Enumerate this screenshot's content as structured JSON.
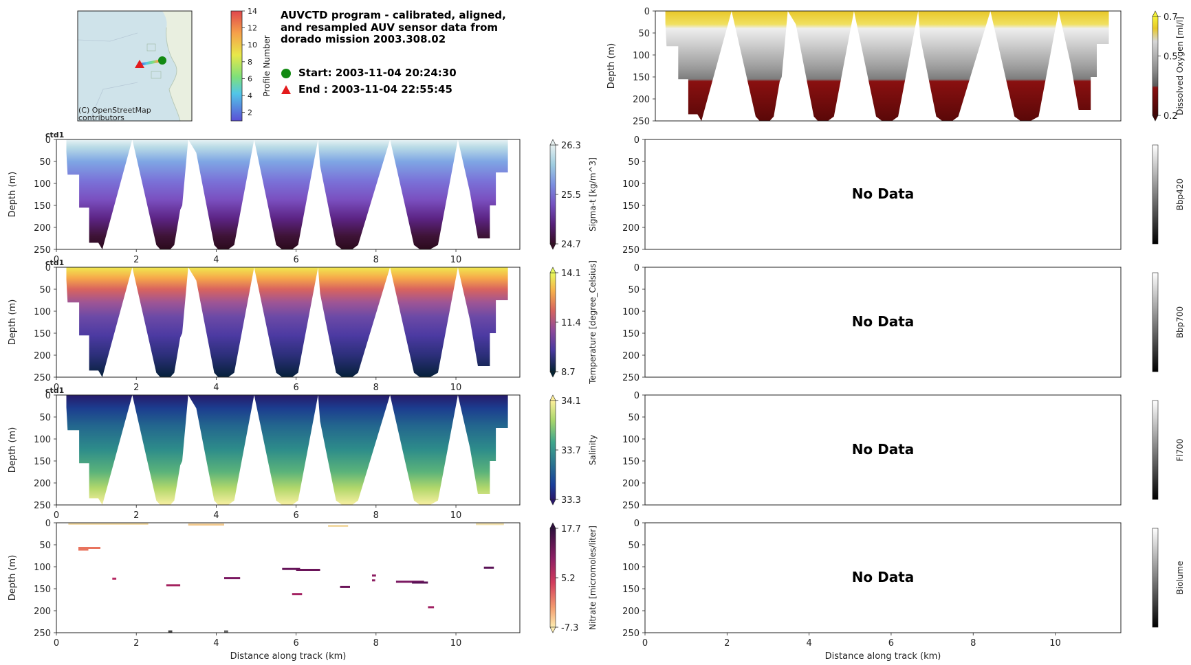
{
  "header": {
    "title_lines": [
      "AUVCTD program - calibrated, aligned,",
      "and resampled AUV sensor data from",
      "dorado mission 2003.308.02"
    ],
    "start_label": "Start: 2003-11-04 20:24:30",
    "end_label": "End  : 2003-11-04 22:55:45",
    "map_credit": [
      "(C) OpenStreetMap",
      "contributors"
    ],
    "profile_colorbar": {
      "label": "Profile Number",
      "ticks": [
        "14",
        "12",
        "10",
        "8",
        "6",
        "4",
        "2"
      ],
      "range": [
        1,
        14
      ]
    }
  },
  "no_data_label": "No Data",
  "chart_data": [
    {
      "id": "sigma_t",
      "type": "heatmap",
      "instrument": "ctd1",
      "title": "ctd1",
      "xlabel": "",
      "ylabel": "Depth (m)",
      "x_ticks": [
        "0",
        "2",
        "4",
        "6",
        "8",
        "10"
      ],
      "xlim": [
        0,
        11.6
      ],
      "y_ticks": [
        "0",
        "50",
        "100",
        "150",
        "200",
        "250"
      ],
      "ylim": [
        250,
        0
      ],
      "colorbar": {
        "label": "Sigma-t [kg/m^3]",
        "ticks": [
          "26.3",
          "25.5",
          "24.7"
        ],
        "range": [
          24.7,
          26.3
        ],
        "cmap": "dense"
      }
    },
    {
      "id": "temperature",
      "type": "heatmap",
      "instrument": "ctd1",
      "title": "ctd1",
      "xlabel": "",
      "ylabel": "Depth (m)",
      "x_ticks": [
        "0",
        "2",
        "4",
        "6",
        "8",
        "10"
      ],
      "xlim": [
        0,
        11.6
      ],
      "y_ticks": [
        "0",
        "50",
        "100",
        "150",
        "200",
        "250"
      ],
      "ylim": [
        250,
        0
      ],
      "colorbar": {
        "label": "Temperature [degree_Celsius]",
        "ticks": [
          "14.1",
          "11.4",
          "8.7"
        ],
        "range": [
          8.7,
          14.1
        ],
        "cmap": "thermal"
      }
    },
    {
      "id": "salinity",
      "type": "heatmap",
      "instrument": "ctd1",
      "title": "ctd1",
      "xlabel": "",
      "ylabel": "Depth (m)",
      "x_ticks": [
        "0",
        "2",
        "4",
        "6",
        "8",
        "10"
      ],
      "xlim": [
        0,
        11.6
      ],
      "y_ticks": [
        "0",
        "50",
        "100",
        "150",
        "200",
        "250"
      ],
      "ylim": [
        250,
        0
      ],
      "colorbar": {
        "label": "Salinity",
        "ticks": [
          "34.1",
          "33.7",
          "33.3"
        ],
        "range": [
          33.3,
          34.1
        ],
        "cmap": "haline"
      }
    },
    {
      "id": "nitrate",
      "type": "heatmap",
      "instrument": "",
      "title": "",
      "xlabel": "Distance along track (km)",
      "ylabel": "Depth (m)",
      "x_ticks": [
        "0",
        "2",
        "4",
        "6",
        "8",
        "10"
      ],
      "xlim": [
        0,
        11.6
      ],
      "y_ticks": [
        "0",
        "50",
        "100",
        "150",
        "200",
        "250"
      ],
      "ylim": [
        250,
        0
      ],
      "colorbar": {
        "label": "Nitrate [micromoles/liter]",
        "ticks": [
          "17.7",
          "5.2",
          "-7.3"
        ],
        "range": [
          -7.3,
          17.7
        ],
        "cmap": "matter"
      }
    },
    {
      "id": "dissolved_oxygen",
      "type": "heatmap",
      "instrument": "",
      "title": "",
      "xlabel": "",
      "ylabel": "Depth (m)",
      "x_ticks": [],
      "xlim": [
        0,
        11.6
      ],
      "y_ticks": [
        "0",
        "50",
        "100",
        "150",
        "200",
        "250"
      ],
      "ylim": [
        250,
        0
      ],
      "colorbar": {
        "label": "Dissolved Oxygen [ml/l]",
        "ticks": [
          "0.7",
          "0.5",
          "0.2"
        ],
        "range": [
          0.2,
          0.7
        ],
        "cmap": "oxy"
      }
    },
    {
      "id": "bbp420",
      "type": "heatmap",
      "no_data": true,
      "xlabel": "",
      "ylabel": "",
      "x_ticks": [],
      "xlim": [
        0,
        11.6
      ],
      "y_ticks": [
        "0",
        "50",
        "100",
        "150",
        "200",
        "250"
      ],
      "ylim": [
        250,
        0
      ],
      "colorbar": {
        "label": "Bbp420",
        "ticks": [],
        "cmap": "gray"
      }
    },
    {
      "id": "bbp700",
      "type": "heatmap",
      "no_data": true,
      "xlabel": "",
      "ylabel": "",
      "x_ticks": [],
      "xlim": [
        0,
        11.6
      ],
      "y_ticks": [
        "0",
        "50",
        "100",
        "150",
        "200",
        "250"
      ],
      "ylim": [
        250,
        0
      ],
      "colorbar": {
        "label": "Bbp700",
        "ticks": [],
        "cmap": "gray"
      }
    },
    {
      "id": "fl700",
      "type": "heatmap",
      "no_data": true,
      "xlabel": "",
      "ylabel": "",
      "x_ticks": [],
      "xlim": [
        0,
        11.6
      ],
      "y_ticks": [
        "0",
        "50",
        "100",
        "150",
        "200",
        "250"
      ],
      "ylim": [
        250,
        0
      ],
      "colorbar": {
        "label": "Fl700",
        "ticks": [],
        "cmap": "gray"
      }
    },
    {
      "id": "biolume",
      "type": "heatmap",
      "no_data": true,
      "xlabel": "Distance along track (km)",
      "ylabel": "",
      "x_ticks": [
        "0",
        "2",
        "4",
        "6",
        "8",
        "10"
      ],
      "xlim": [
        0,
        11.6
      ],
      "y_ticks": [
        "0",
        "50",
        "100",
        "150",
        "200",
        "250"
      ],
      "ylim": [
        250,
        0
      ],
      "colorbar": {
        "label": "Biolume",
        "ticks": [],
        "cmap": "gray"
      }
    }
  ]
}
